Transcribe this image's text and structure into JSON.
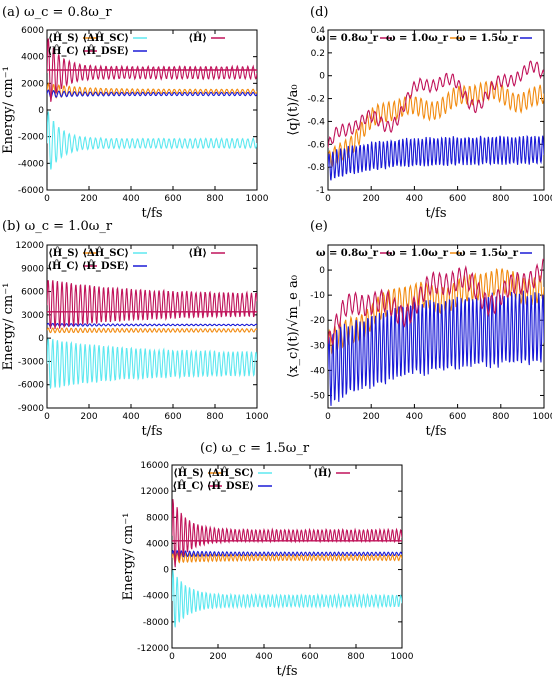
{
  "colors": {
    "orange": "#f28c12",
    "magenta": "#c0135a",
    "cyan": "#5ee8f0",
    "blue": "#1a1ad6"
  },
  "panels": {
    "a": {
      "title": "(a) ω_c = 0.8ω_r"
    },
    "b": {
      "title": "(b) ω_c = 1.0ω_r"
    },
    "c": {
      "title": "(c) ω_c = 1.5ω_r"
    },
    "d": {
      "title": "(d)"
    },
    "e": {
      "title": "(e)"
    }
  },
  "legend_energy": [
    "⟨Ĥ_S⟩",
    "⟨ΔĤ_SC⟩",
    "⟨Ĥ⟩",
    "⟨Ĥ_C⟩",
    "⟨Ĥ_DSE⟩"
  ],
  "legend_obs": [
    "ω = 0.8ω_r",
    "ω = 1.0ω_r",
    "ω = 1.5ω_r"
  ],
  "chart_data": [
    {
      "type": "line",
      "panel": "a",
      "title": "(a) ω_c = 0.8ω_r",
      "xlabel": "t/fs",
      "ylabel": "Energy/ cm⁻¹",
      "xlim": [
        0,
        1000
      ],
      "ylim": [
        -6000,
        6000
      ],
      "xticks": [
        "0",
        "200",
        "400",
        "600",
        "800",
        "1000"
      ],
      "yticks": [
        "-6000",
        "-4000",
        "-2000",
        "0",
        "2000",
        "4000",
        "6000"
      ],
      "legend_placement": "top",
      "series": [
        {
          "name": "⟨Ĥ_S⟩",
          "color": "orange",
          "mean": 1400,
          "amp": 150,
          "amp0": 600,
          "period": 25,
          "tau": 150,
          "drift": 0
        },
        {
          "name": "⟨ΔĤ_SC⟩",
          "color": "cyan",
          "mean": -2500,
          "amp": 350,
          "amp0": 2600,
          "period": 25,
          "tau": 60,
          "drift": 0
        },
        {
          "name": "⟨Ĥ⟩",
          "color": "magenta",
          "mean": 3000,
          "amp": 0,
          "amp0": 0,
          "period": 25,
          "tau": 100,
          "drift": 0
        },
        {
          "name": "⟨Ĥ_C⟩",
          "color": "magenta",
          "mean": 2800,
          "amp": 450,
          "amp0": 2800,
          "period": 25,
          "tau": 60,
          "drift": 0
        },
        {
          "name": "⟨Ĥ_DSE⟩",
          "color": "blue",
          "mean": 1200,
          "amp": 120,
          "amp0": 300,
          "period": 25,
          "tau": 100,
          "drift": 0
        }
      ]
    },
    {
      "type": "line",
      "panel": "b",
      "title": "(b) ω_c = 1.0ω_r",
      "xlabel": "t/fs",
      "ylabel": "Energy/ cm⁻¹",
      "xlim": [
        0,
        1000
      ],
      "ylim": [
        -9000,
        12000
      ],
      "xticks": [
        "0",
        "200",
        "400",
        "600",
        "800",
        "1000"
      ],
      "yticks": [
        "-9000",
        "-6000",
        "-3000",
        "0",
        "3000",
        "6000",
        "9000",
        "12000"
      ],
      "legend_placement": "top",
      "series": [
        {
          "name": "⟨Ĥ_S⟩",
          "color": "orange",
          "mean": 1000,
          "amp": 200,
          "amp0": 300,
          "period": 22,
          "tau": 400,
          "drift": 0
        },
        {
          "name": "⟨ΔĤ_SC⟩",
          "color": "cyan",
          "mean": -3300,
          "amp": 1400,
          "amp0": 3300,
          "period": 22,
          "tau": 350,
          "drift": 0
        },
        {
          "name": "⟨Ĥ⟩",
          "color": "magenta",
          "mean": 3400,
          "amp": 0,
          "amp0": 0,
          "period": 22,
          "tau": 100,
          "drift": 0
        },
        {
          "name": "⟨Ĥ_C⟩",
          "color": "magenta",
          "mean": 4300,
          "amp": 1400,
          "amp0": 3300,
          "period": 22,
          "tau": 350,
          "drift": 0
        },
        {
          "name": "⟨Ĥ_DSE⟩",
          "color": "blue",
          "mean": 1700,
          "amp": 80,
          "amp0": 200,
          "period": 22,
          "tau": 300,
          "drift": 0
        }
      ]
    },
    {
      "type": "line",
      "panel": "c",
      "title": "(c) ω_c = 1.5ω_r",
      "xlabel": "t/fs",
      "ylabel": "Energy/ cm⁻¹",
      "xlim": [
        0,
        1000
      ],
      "ylim": [
        -12000,
        16000
      ],
      "xticks": [
        "0",
        "200",
        "400",
        "600",
        "800",
        "1000"
      ],
      "yticks": [
        "-12000",
        "-8000",
        "-4000",
        "0",
        "4000",
        "8000",
        "12000",
        "16000"
      ],
      "legend_placement": "top",
      "series": [
        {
          "name": "⟨Ĥ_S⟩",
          "color": "orange",
          "mean": 1800,
          "amp": 400,
          "amp0": 800,
          "period": 18,
          "tau": 150,
          "drift": 0
        },
        {
          "name": "⟨ΔĤ_SC⟩",
          "color": "cyan",
          "mean": -4800,
          "amp": 900,
          "amp0": 5000,
          "period": 18,
          "tau": 60,
          "drift": 0
        },
        {
          "name": "⟨Ĥ⟩",
          "color": "magenta",
          "mean": 4400,
          "amp": 0,
          "amp0": 0,
          "period": 18,
          "tau": 100,
          "drift": 0
        },
        {
          "name": "⟨Ĥ_C⟩",
          "color": "magenta",
          "mean": 5200,
          "amp": 900,
          "amp0": 6000,
          "period": 18,
          "tau": 60,
          "drift": 0
        },
        {
          "name": "⟨Ĥ_DSE⟩",
          "color": "blue",
          "mean": 2400,
          "amp": 250,
          "amp0": 500,
          "period": 18,
          "tau": 150,
          "drift": 0
        }
      ]
    },
    {
      "type": "line",
      "panel": "d",
      "title": "(d)",
      "xlabel": "t/fs",
      "ylabel": "⟨q⟩(t)/a₀",
      "xlim": [
        0,
        1000
      ],
      "ylim": [
        -1.0,
        0.4
      ],
      "xticks": [
        "0",
        "200",
        "400",
        "600",
        "800",
        "1000"
      ],
      "yticks": [
        "-1",
        "-0.8",
        "-0.6",
        "-0.4",
        "-0.2",
        "0",
        "0.2",
        "0.4"
      ],
      "legend_placement": "top",
      "series": [
        {
          "name": "ω = 0.8ω_r",
          "color": "magenta",
          "start": -0.75,
          "mean": -0.05,
          "amp": 0.05,
          "period": 30,
          "tau": 250,
          "wander": 0.12
        },
        {
          "name": "ω = 1.0ω_r",
          "color": "orange",
          "start": -0.75,
          "mean": -0.15,
          "amp": 0.08,
          "period": 25,
          "tau": 250,
          "wander": 0.05
        },
        {
          "name": "ω = 1.5ω_r",
          "color": "blue",
          "start": -0.8,
          "mean": -0.65,
          "amp": 0.12,
          "period": 18,
          "tau": 200,
          "wander": 0.0
        }
      ]
    },
    {
      "type": "line",
      "panel": "e",
      "title": "(e)",
      "xlabel": "t/fs",
      "ylabel": "⟨x_c⟩(t)/√m_e a₀",
      "xlim": [
        0,
        1000
      ],
      "ylim": [
        -55,
        10
      ],
      "xticks": [
        "0",
        "200",
        "400",
        "600",
        "800",
        "1000"
      ],
      "yticks": [
        "-50",
        "-40",
        "-30",
        "-20",
        "-10",
        "0"
      ],
      "legend_placement": "top",
      "series": [
        {
          "name": "ω = 0.8ω_r",
          "color": "magenta",
          "start": -25,
          "mean": -5,
          "amp": 4,
          "period": 30,
          "tau": 300,
          "wander": 5
        },
        {
          "name": "ω = 1.0ω_r",
          "color": "orange",
          "start": -30,
          "mean": -5,
          "amp": 5,
          "period": 25,
          "tau": 300,
          "wander": 2
        },
        {
          "name": "ω = 1.5ω_r",
          "color": "blue",
          "start": -40,
          "mean": -22,
          "amp": 14,
          "period": 18,
          "tau": 350,
          "wander": 0
        }
      ]
    }
  ]
}
